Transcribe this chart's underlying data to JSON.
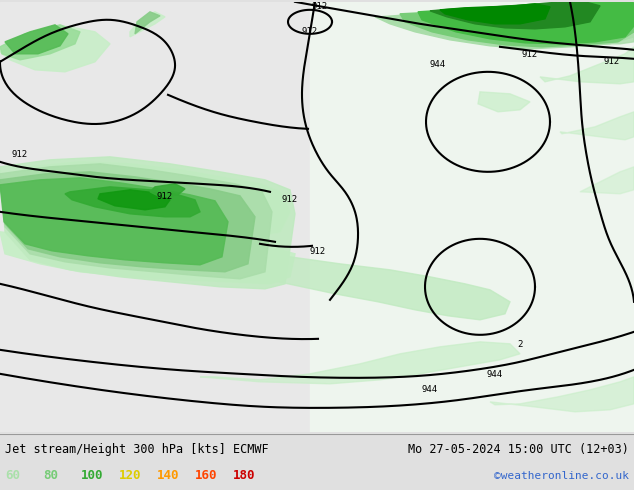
{
  "title_left": "Jet stream/Height 300 hPa [kts] ECMWF",
  "title_right": "Mo 27-05-2024 15:00 UTC (12+03)",
  "credit": "©weatheronline.co.uk",
  "legend_values": [
    60,
    80,
    100,
    120,
    140,
    160,
    180
  ],
  "legend_colors": [
    "#aae0aa",
    "#77cc77",
    "#33aa33",
    "#ddcc00",
    "#ff9900",
    "#ff4400",
    "#cc0000"
  ],
  "bg_color": "#e0e0e0",
  "land_color": "#e8e8e8",
  "sea_color": "#ddeedd",
  "figsize": [
    6.34,
    4.9
  ],
  "dpi": 100,
  "wind_colors": {
    "v60": "#c8eec8",
    "v80": "#aaddaa",
    "v100": "#77cc77",
    "v120": "#44aa44",
    "v140": "#228822",
    "v160": "#005500"
  }
}
